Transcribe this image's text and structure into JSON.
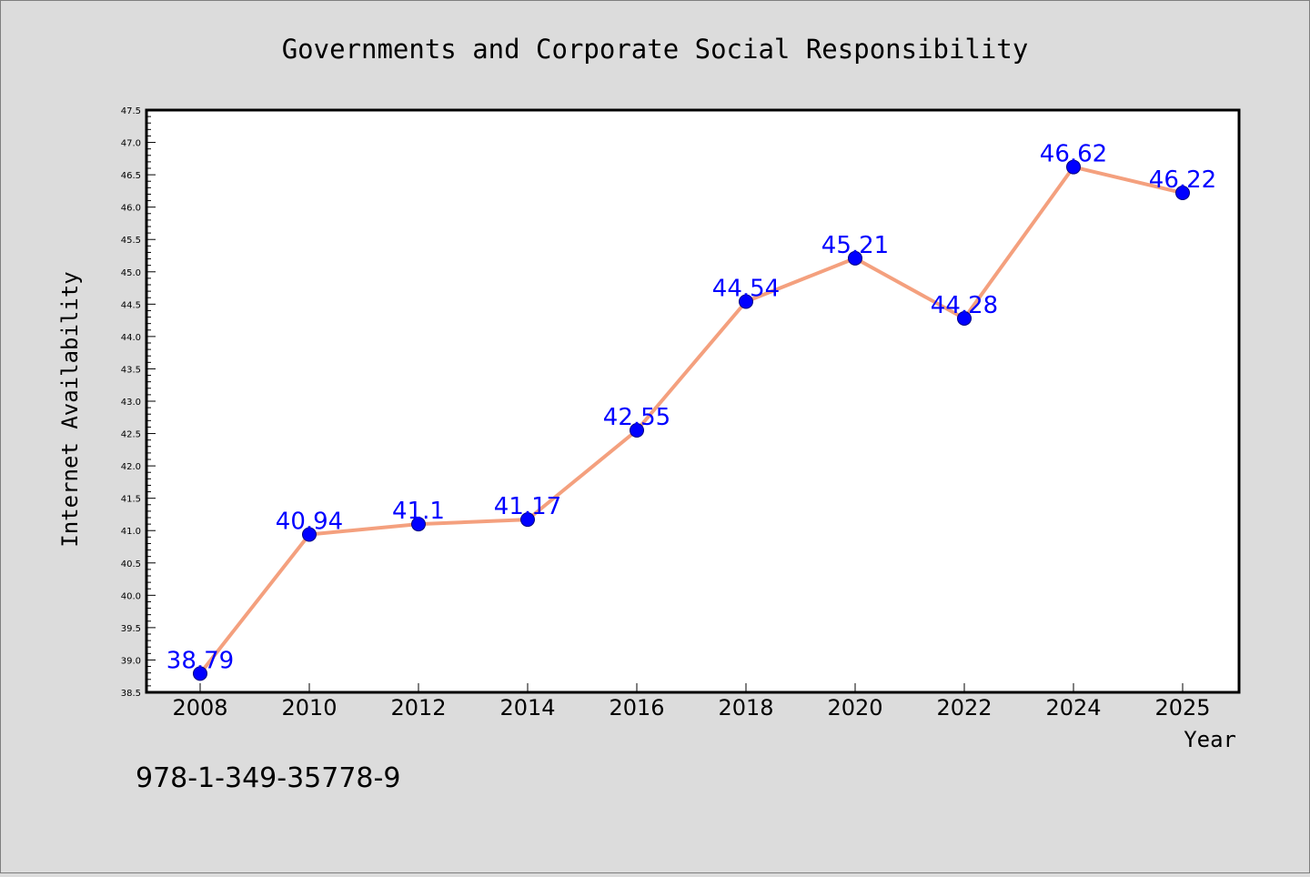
{
  "chart_data": {
    "type": "line",
    "title": "Governments and Corporate Social Responsibility",
    "xlabel": "Year",
    "ylabel": "Internet Availability",
    "categories": [
      "2008",
      "2010",
      "2012",
      "2014",
      "2016",
      "2018",
      "2020",
      "2022",
      "2024",
      "2025"
    ],
    "x": [
      2008,
      2010,
      2012,
      2014,
      2016,
      2018,
      2020,
      2022,
      2024,
      2025
    ],
    "series": [
      {
        "values": [
          38.79,
          40.94,
          41.1,
          41.17,
          42.55,
          44.54,
          45.21,
          44.28,
          46.62,
          46.22
        ],
        "labels": [
          "38.79",
          "40.94",
          "41.1",
          "41.17",
          "42.55",
          "44.54",
          "45.21",
          "44.28",
          "46.62",
          "46.22"
        ]
      }
    ],
    "ylim": [
      38.5,
      47.5
    ],
    "yticks": [
      "38.5",
      "39.0",
      "39.5",
      "40.0",
      "40.5",
      "41.0",
      "41.5",
      "42.0",
      "42.5",
      "43.0",
      "43.5",
      "44.0",
      "44.5",
      "45.0",
      "45.5",
      "46.0",
      "46.5",
      "47.0",
      "47.5"
    ],
    "grid": false,
    "legend": "none",
    "colors": {
      "line": "#f4a07e",
      "marker": "#0000ff",
      "data_label": "#0000ff",
      "background": "#dcdcdc",
      "plot_background": "#ffffff"
    }
  },
  "footer": {
    "isbn": "978-1-349-35778-9"
  }
}
